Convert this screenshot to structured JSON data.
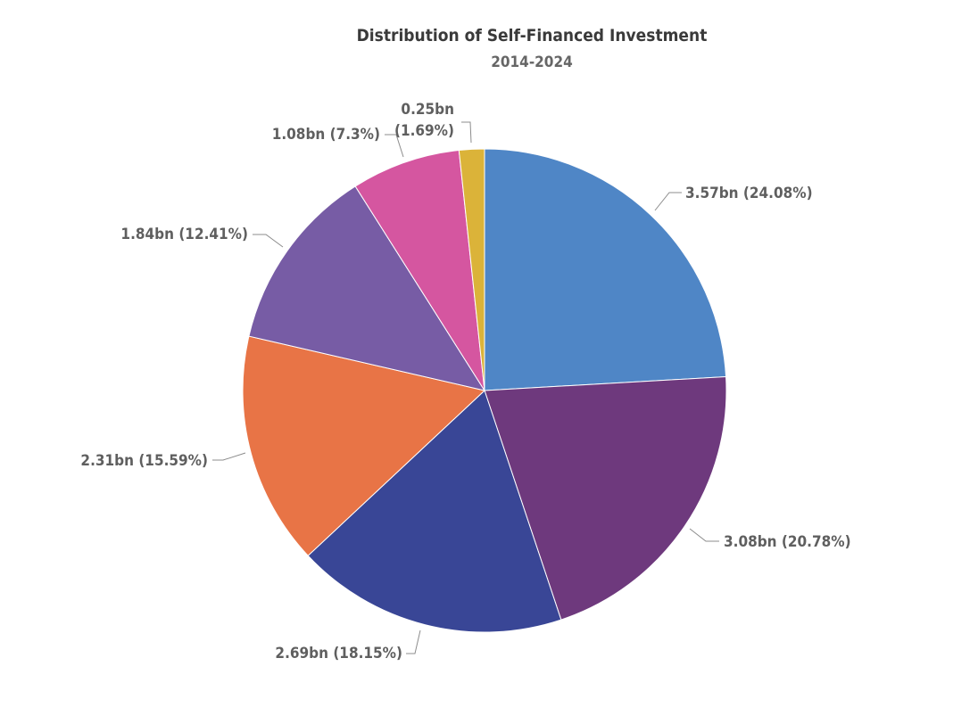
{
  "chart_data": {
    "type": "pie",
    "title": "Distribution of Self-Financed Investment",
    "subtitle": "2014-2024",
    "start_angle_deg": 0,
    "direction": "clockwise",
    "slices": [
      {
        "value": 3.57,
        "label": "3.57bn (24.08%)",
        "color": "#4f86c6"
      },
      {
        "value": 3.08,
        "label": "3.08bn (20.78%)",
        "color": "#6e397d"
      },
      {
        "value": 2.69,
        "label": "2.69bn (18.15%)",
        "color": "#394696"
      },
      {
        "value": 2.31,
        "label": "2.31bn (15.59%)",
        "color": "#e87446"
      },
      {
        "value": 1.84,
        "label": "1.84bn (12.41%)",
        "color": "#775ca5"
      },
      {
        "value": 1.08,
        "label": "1.08bn (7.3%)",
        "color": "#d556a0"
      },
      {
        "value": 0.25,
        "label": "0.25bn (1.69%)",
        "label_lines": [
          "0.25bn",
          "(1.69%)"
        ],
        "color": "#dbb339"
      }
    ]
  }
}
